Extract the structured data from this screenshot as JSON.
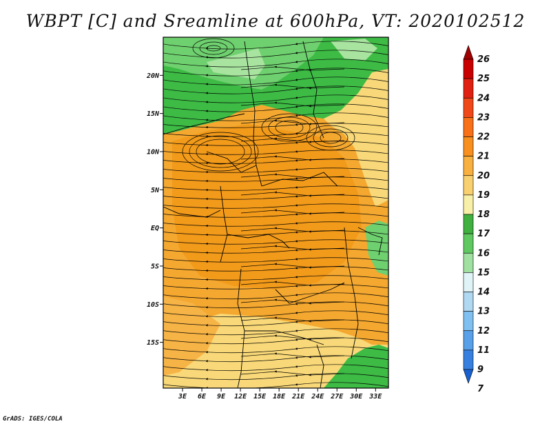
{
  "title": "WBPT [C] and Sreamline at 600hPa, VT: 2020102512",
  "credit": "GrADS: IGES/COLA",
  "map": {
    "lat_range": [
      -21,
      25
    ],
    "lon_range": [
      0,
      35
    ],
    "lat_ticks": [
      {
        "value": 20,
        "label": "20N"
      },
      {
        "value": 15,
        "label": "15N"
      },
      {
        "value": 10,
        "label": "10N"
      },
      {
        "value": 5,
        "label": "5N"
      },
      {
        "value": 0,
        "label": "EQ"
      },
      {
        "value": -5,
        "label": "5S"
      },
      {
        "value": -10,
        "label": "10S"
      },
      {
        "value": -15,
        "label": "15S"
      }
    ],
    "lon_ticks": [
      {
        "value": 3,
        "label": "3E"
      },
      {
        "value": 6,
        "label": "6E"
      },
      {
        "value": 9,
        "label": "9E"
      },
      {
        "value": 12,
        "label": "12E"
      },
      {
        "value": 15,
        "label": "15E"
      },
      {
        "value": 18,
        "label": "18E"
      },
      {
        "value": 21,
        "label": "21E"
      },
      {
        "value": 24,
        "label": "24E"
      },
      {
        "value": 27,
        "label": "27E"
      },
      {
        "value": 30,
        "label": "30E"
      },
      {
        "value": 33,
        "label": "33E"
      }
    ]
  },
  "colorbar": {
    "labels": [
      "26",
      "25",
      "24",
      "23",
      "22",
      "21",
      "20",
      "19",
      "18",
      "17",
      "16",
      "15",
      "14",
      "13",
      "12",
      "11",
      "9",
      "7"
    ],
    "colors": [
      "#a00000",
      "#c80000",
      "#e02010",
      "#f04818",
      "#f87018",
      "#f89020",
      "#f8b040",
      "#f8d070",
      "#f8f0a8",
      "#40b040",
      "#60c860",
      "#a0e0a0",
      "#e0f4f8",
      "#b0d8f0",
      "#80c0f0",
      "#58a0e8",
      "#3880e0",
      "#1860d0"
    ]
  },
  "colors": {
    "green_dark": "#3dbb45",
    "green_mid": "#6fd06f",
    "green_light": "#a8e4a0",
    "orange_dark": "#f29a1a",
    "orange": "#f7b446",
    "yellow": "#f8d878"
  }
}
